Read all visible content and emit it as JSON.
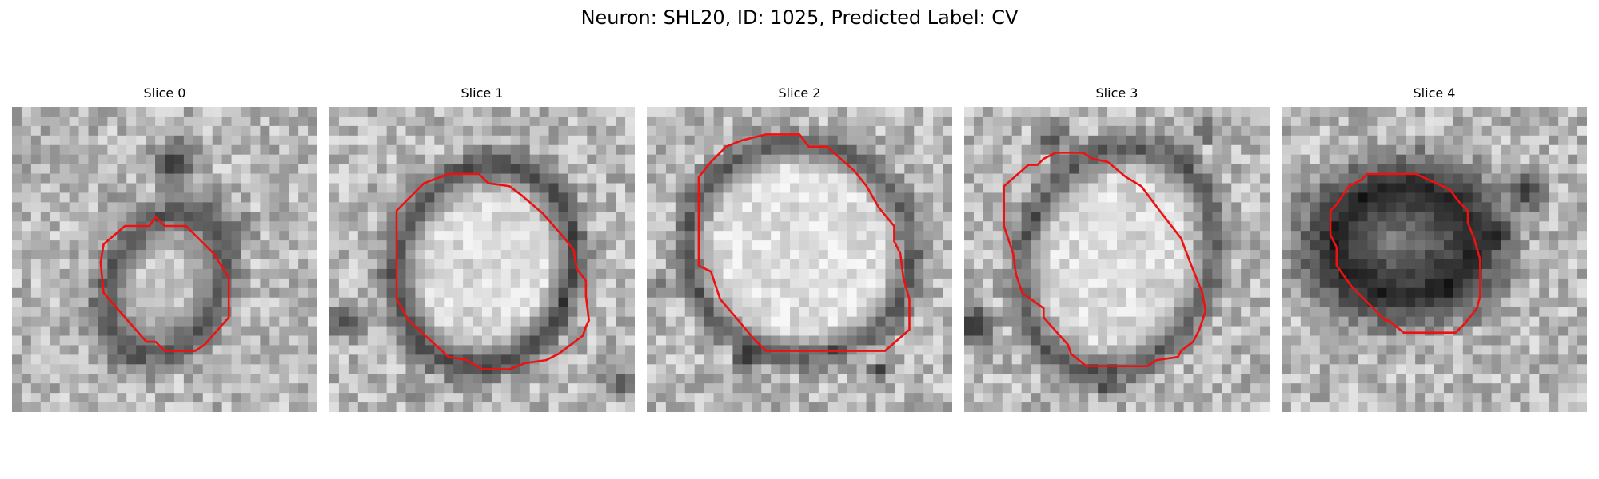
{
  "figure": {
    "title": "Neuron: SHL20, ID: 1025, Predicted Label: CV"
  },
  "colors": {
    "contour": "#ee1111",
    "background": "#ffffff"
  },
  "panels": [
    {
      "title": "Slice 0"
    },
    {
      "title": "Slice 1"
    },
    {
      "title": "Slice 2"
    },
    {
      "title": "Slice 3"
    },
    {
      "title": "Slice 4"
    }
  ]
}
